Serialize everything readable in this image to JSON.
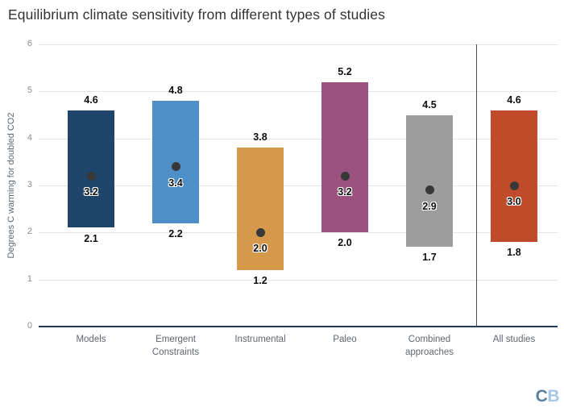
{
  "title": "Equilibrium climate sensitivity from different types of studies",
  "logo": {
    "c": "C",
    "b": "B"
  },
  "chart_data": {
    "type": "bar",
    "subtype": "floating-range-bars-with-best-estimate-dot",
    "title": "Equilibrium climate sensitivity from different types of studies",
    "xlabel": "",
    "ylabel": "Degrees C warming for doubled CO2",
    "ylim": [
      0,
      6
    ],
    "yticks": [
      0,
      1,
      2,
      3,
      4,
      5,
      6
    ],
    "grid": true,
    "legend": null,
    "categories": [
      "Models",
      "Emergent Constraints",
      "Instrumental",
      "Paleo",
      "Combined approaches",
      "All studies"
    ],
    "bars": [
      {
        "category": "Models",
        "label_lines": [
          "Models"
        ],
        "low": 2.1,
        "high": 4.6,
        "best": 3.2,
        "color": "#20456a"
      },
      {
        "category": "Emergent Constraints",
        "label_lines": [
          "Emergent",
          "Constraints"
        ],
        "low": 2.2,
        "high": 4.8,
        "best": 3.4,
        "color": "#4e8fc7"
      },
      {
        "category": "Instrumental",
        "label_lines": [
          "Instrumental"
        ],
        "low": 1.2,
        "high": 3.8,
        "best": 2.0,
        "color": "#d6994c"
      },
      {
        "category": "Paleo",
        "label_lines": [
          "Paleo"
        ],
        "low": 2.0,
        "high": 5.2,
        "best": 3.2,
        "color": "#9b527f"
      },
      {
        "category": "Combined approaches",
        "label_lines": [
          "Combined",
          "approaches"
        ],
        "low": 1.7,
        "high": 4.5,
        "best": 2.9,
        "color": "#9d9d9d"
      },
      {
        "category": "All studies",
        "label_lines": [
          "All studies"
        ],
        "low": 1.8,
        "high": 4.6,
        "best": 3.0,
        "color": "#bf4b2b"
      }
    ],
    "divider_before_category": "All studies",
    "dot_color": "#383838",
    "baseline_color": "#24395b",
    "gridline_color": "#e5e5e5"
  }
}
